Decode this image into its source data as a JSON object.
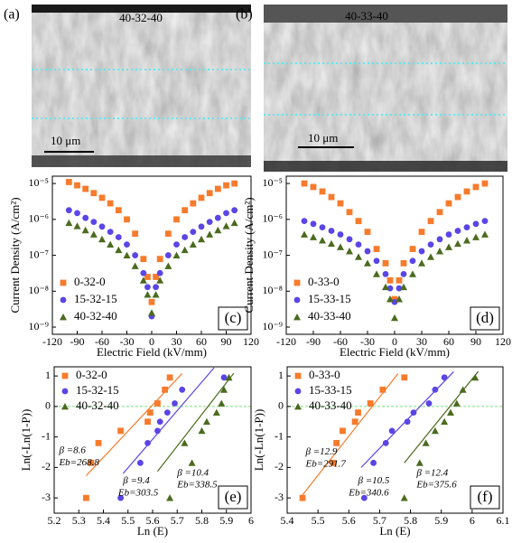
{
  "sem_images": [
    {
      "panel_label": "(a)",
      "sample": "40-32-40",
      "scale_bar": "10 μm"
    },
    {
      "panel_label": "(b)",
      "sample": "40-33-40",
      "scale_bar": "10 μm"
    }
  ],
  "chart_data": [
    {
      "type": "scatter",
      "panel_label": "(c)",
      "x_label": "Electric Field (kV/mm)",
      "y_label": "Current Density (A/cm²)",
      "log_y": true,
      "xlim": [
        -120,
        120
      ],
      "xticks": [
        -120,
        -90,
        -60,
        -30,
        0,
        30,
        60,
        90,
        120
      ],
      "ylim": [
        6.3e-10,
        1.6e-05
      ],
      "yticks": [
        {
          "value": 1e-09,
          "label": "10⁻⁹"
        },
        {
          "value": 1e-08,
          "label": "10⁻⁸"
        },
        {
          "value": 1e-07,
          "label": "10⁻⁷"
        },
        {
          "value": 1e-06,
          "label": "10⁻⁶"
        },
        {
          "value": 1e-05,
          "label": "10⁻⁵"
        }
      ],
      "legend": "lower left",
      "x": [
        -100,
        -90,
        -80,
        -70,
        -60,
        -50,
        -40,
        -30,
        -20,
        -10,
        -5,
        0,
        5,
        10,
        20,
        30,
        40,
        50,
        60,
        70,
        80,
        90,
        100
      ],
      "series": [
        {
          "name": "0-32-0",
          "color": "#f77b2c",
          "marker": "square",
          "values": [
            1.1e-05,
            8.9e-06,
            7.1e-06,
            5.4e-06,
            4e-06,
            2.8e-06,
            1.8e-06,
            1e-06,
            4e-07,
            7.9e-08,
            2.5e-08,
            5e-09,
            2.5e-08,
            7.9e-08,
            4e-07,
            1e-06,
            1.8e-06,
            2.8e-06,
            4e-06,
            5.4e-06,
            7.1e-06,
            8.9e-06,
            1e-05
          ]
        },
        {
          "name": "15-32-15",
          "color": "#5a45e6",
          "marker": "circle",
          "values": [
            1.8e-06,
            1.5e-06,
            1.1e-06,
            8.5e-07,
            6.3e-07,
            4.5e-07,
            3.2e-07,
            2e-07,
            1e-07,
            3.2e-08,
            1.3e-08,
            2e-09,
            1.3e-08,
            3.2e-08,
            1e-07,
            2e-07,
            3.2e-07,
            4.5e-07,
            6.3e-07,
            8.5e-07,
            1.1e-06,
            1.5e-06,
            1.8e-06
          ]
        },
        {
          "name": "40-32-40",
          "color": "#4b6b1f",
          "marker": "triangle",
          "values": [
            8e-07,
            6.5e-07,
            5e-07,
            3.8e-07,
            2.8e-07,
            2e-07,
            1.4e-07,
            1e-07,
            5e-08,
            2e-08,
            8e-09,
            2.5e-09,
            8e-09,
            2e-08,
            5e-08,
            1e-07,
            1.4e-07,
            2e-07,
            2.8e-07,
            3.8e-07,
            5e-07,
            6.5e-07,
            8e-07
          ]
        }
      ]
    },
    {
      "type": "scatter",
      "panel_label": "(d)",
      "x_label": "Electric Field (kV/mm)",
      "y_label": "Current Density (A/cm²)",
      "log_y": true,
      "xlim": [
        -120,
        120
      ],
      "xticks": [
        -120,
        -90,
        -60,
        -30,
        0,
        30,
        60,
        90,
        120
      ],
      "ylim": [
        6.3e-10,
        1.6e-05
      ],
      "yticks": [
        {
          "value": 1e-09,
          "label": "10⁻⁹"
        },
        {
          "value": 1e-08,
          "label": "10⁻⁸"
        },
        {
          "value": 1e-07,
          "label": "10⁻⁷"
        },
        {
          "value": 1e-06,
          "label": "10⁻⁶"
        },
        {
          "value": 1e-05,
          "label": "10⁻⁵"
        }
      ],
      "legend": "lower left",
      "x": [
        -100,
        -90,
        -80,
        -70,
        -60,
        -50,
        -40,
        -30,
        -20,
        -10,
        -5,
        0,
        5,
        10,
        20,
        30,
        40,
        50,
        60,
        70,
        80,
        90,
        100
      ],
      "series": [
        {
          "name": "0-33-0",
          "color": "#f77b2c",
          "marker": "square",
          "values": [
            1e-05,
            8e-06,
            6e-06,
            4.2e-06,
            2.8e-06,
            1.6e-06,
            9e-07,
            4.5e-07,
            1.5e-07,
            6e-08,
            2e-08,
            6e-09,
            2e-08,
            6e-08,
            1.5e-07,
            4.5e-07,
            9e-07,
            1.6e-06,
            2.8e-06,
            4.2e-06,
            6e-06,
            8e-06,
            1e-05
          ]
        },
        {
          "name": "15-33-15",
          "color": "#5a45e6",
          "marker": "circle",
          "values": [
            9e-07,
            7.5e-07,
            6e-07,
            4.8e-07,
            3.8e-07,
            2.8e-07,
            2e-07,
            1.3e-07,
            7e-08,
            3e-08,
            1.2e-08,
            5e-09,
            1.2e-08,
            3e-08,
            7e-08,
            1.3e-07,
            2e-07,
            2.8e-07,
            3.8e-07,
            4.8e-07,
            6e-07,
            7.5e-07,
            9e-07
          ]
        },
        {
          "name": "40-33-40",
          "color": "#4b6b1f",
          "marker": "triangle",
          "values": [
            3.8e-07,
            3.2e-07,
            2.6e-07,
            2.1e-07,
            1.7e-07,
            1.3e-07,
            9e-08,
            6e-08,
            3e-08,
            1.3e-08,
            6e-09,
            1.8e-09,
            6e-09,
            1.3e-08,
            3e-08,
            6e-08,
            9e-08,
            1.3e-07,
            1.7e-07,
            2.1e-07,
            2.6e-07,
            3.2e-07,
            3.8e-07
          ]
        }
      ]
    },
    {
      "type": "weibull",
      "panel_label": "(e)",
      "x_label": "Ln (E)",
      "y_label": "Ln(-Ln(1-P))",
      "xlim": [
        5.2,
        6.0
      ],
      "xticks": [
        5.2,
        5.3,
        5.4,
        5.5,
        5.6,
        5.7,
        5.8,
        5.9,
        6.0
      ],
      "ylim": [
        -3.5,
        1.3
      ],
      "yticks": [
        -3,
        -2,
        -1,
        0,
        1
      ],
      "zero_line": true,
      "legend": "upper left",
      "series": [
        {
          "name": "0-32-0",
          "color": "#f77b2c",
          "marker": "square",
          "beta_label": "β =8.6",
          "eb_label": "Eb=268.8",
          "x": [
            5.33,
            5.35,
            5.38,
            5.47,
            5.58,
            5.59,
            5.62,
            5.65,
            5.67
          ],
          "values": [
            -3.0,
            -1.85,
            -1.2,
            -0.8,
            -0.5,
            -0.2,
            0.1,
            0.55,
            0.95
          ],
          "fit_x": [
            5.33,
            5.72
          ],
          "fit_y": [
            -2.27,
            1.08
          ]
        },
        {
          "name": "15-32-15",
          "color": "#5a45e6",
          "marker": "circle",
          "beta_label": "β =9.4",
          "eb_label": "Eb=303.5",
          "x": [
            5.47,
            5.55,
            5.58,
            5.62,
            5.63,
            5.66,
            5.69,
            5.72,
            5.89
          ],
          "values": [
            -3.0,
            -1.85,
            -1.2,
            -0.8,
            -0.5,
            -0.2,
            0.1,
            0.55,
            0.95
          ],
          "fit_x": [
            5.48,
            5.85
          ],
          "fit_y": [
            -2.2,
            1.27
          ]
        },
        {
          "name": "40-32-40",
          "color": "#4b6b1f",
          "marker": "triangle",
          "beta_label": "β =10.4",
          "eb_label": "Eb=338.5",
          "x": [
            5.67,
            5.76,
            5.73,
            5.8,
            5.82,
            5.86,
            5.88,
            5.89,
            5.91
          ],
          "values": [
            -3.0,
            -1.85,
            -1.2,
            -0.8,
            -0.5,
            -0.2,
            0.1,
            0.55,
            0.95
          ],
          "fit_x": [
            5.62,
            5.93
          ],
          "fit_y": [
            -2.13,
            1.09
          ]
        }
      ]
    },
    {
      "type": "weibull",
      "panel_label": "(f)",
      "x_label": "Ln (E)",
      "y_label": "Ln(-Ln(1-P))",
      "xlim": [
        5.4,
        6.1
      ],
      "xticks": [
        5.4,
        5.5,
        5.6,
        5.7,
        5.8,
        5.9,
        6.0,
        6.1
      ],
      "ylim": [
        -3.5,
        1.3
      ],
      "yticks": [
        -3,
        -2,
        -1,
        0,
        1
      ],
      "zero_line": true,
      "legend": "upper left",
      "series": [
        {
          "name": "0-33-0",
          "color": "#f77b2c",
          "marker": "square",
          "beta_label": "β =12.9",
          "eb_label": "Eb=291.7",
          "x": [
            5.45,
            5.55,
            5.56,
            5.58,
            5.62,
            5.63,
            5.67,
            5.71,
            5.78
          ],
          "values": [
            -3.0,
            -1.85,
            -1.2,
            -0.8,
            -0.5,
            -0.2,
            0.1,
            0.55,
            0.95
          ],
          "fit_x": [
            5.45,
            5.76
          ],
          "fit_y": [
            -2.9,
            1.08
          ]
        },
        {
          "name": "15-33-15",
          "color": "#5a45e6",
          "marker": "circle",
          "beta_label": "β =10.5",
          "eb_label": "Eb=340.6",
          "x": [
            5.65,
            5.68,
            5.72,
            5.74,
            5.79,
            5.81,
            5.86,
            5.88,
            5.91
          ],
          "values": [
            -3.0,
            -1.85,
            -1.2,
            -0.8,
            -0.5,
            -0.2,
            0.1,
            0.55,
            0.95
          ],
          "fit_x": [
            5.64,
            5.94
          ],
          "fit_y": [
            -2.0,
            1.14
          ]
        },
        {
          "name": "40-33-40",
          "color": "#4b6b1f",
          "marker": "triangle",
          "beta_label": "β =12.4",
          "eb_label": "Eb=375.6",
          "x": [
            5.78,
            5.83,
            5.85,
            5.88,
            5.91,
            5.93,
            5.95,
            5.97,
            6.01
          ],
          "values": [
            -3.0,
            -1.85,
            -1.2,
            -0.8,
            -0.5,
            -0.2,
            0.1,
            0.55,
            0.95
          ],
          "fit_x": [
            5.78,
            6.02
          ],
          "fit_y": [
            -1.85,
            1.15
          ]
        }
      ]
    }
  ]
}
